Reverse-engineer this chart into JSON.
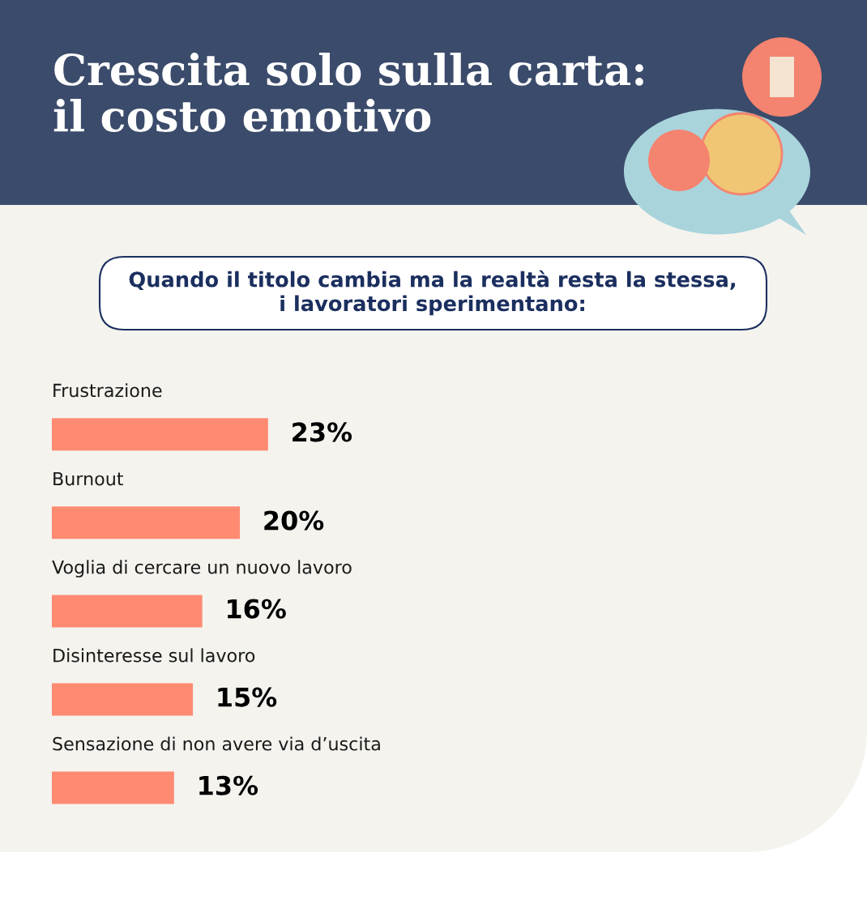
{
  "chart_data": {
    "type": "bar",
    "orientation": "horizontal",
    "title": "Crescita solo sulla carta:\nil costo emotivo",
    "subtitle": "Quando il titolo cambia ma la realtà resta la stessa,\ni lavoratori sperimentano:",
    "categories": [
      "Frustrazione",
      "Burnout",
      "Voglia di cercare un nuovo lavoro",
      "Disinteresse sul lavoro",
      "Sensazione di non avere via d’uscita"
    ],
    "values": [
      23,
      20,
      16,
      15,
      13
    ],
    "value_labels": [
      "23%",
      "20%",
      "16%",
      "15%",
      "13%"
    ],
    "color": "#ff8a72"
  }
}
